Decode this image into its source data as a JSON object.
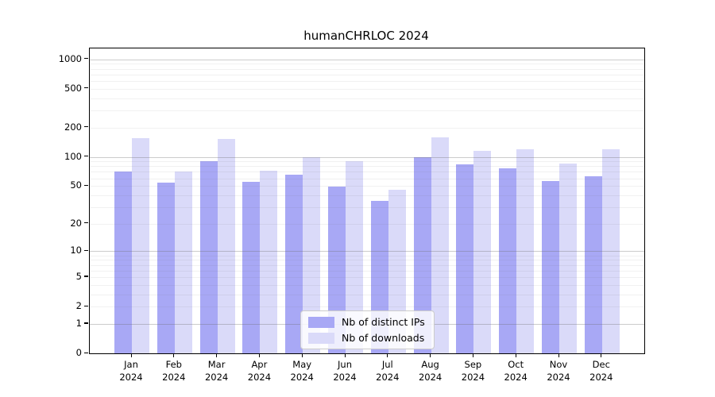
{
  "chart_data": {
    "type": "bar",
    "title": "humanCHRLOC 2024",
    "categories": [
      "Jan",
      "Feb",
      "Mar",
      "Apr",
      "May",
      "Jun",
      "Jul",
      "Aug",
      "Sep",
      "Oct",
      "Nov",
      "Dec"
    ],
    "year_label": "2024",
    "series": [
      {
        "name": "Nb of distinct IPs",
        "color": "#a8a8f5",
        "values": [
          71,
          54,
          90,
          55,
          65,
          49,
          35,
          100,
          84,
          76,
          56,
          63
        ]
      },
      {
        "name": "Nb of downloads",
        "color": "#dadaf9",
        "values": [
          157,
          71,
          152,
          72,
          100,
          90,
          46,
          160,
          115,
          119,
          85,
          120
        ]
      }
    ],
    "y_axis": {
      "scale": "log1p",
      "ticks": [
        0,
        1,
        2,
        5,
        10,
        20,
        50,
        100,
        200,
        500,
        1000
      ],
      "ylim": [
        0,
        1290
      ]
    },
    "grid": {
      "on": true,
      "major_ticks": [
        1,
        10,
        100,
        1000
      ],
      "major_color": "rgba(110,110,110,0.35)",
      "minor_color": "rgba(120,120,120,0.10)"
    },
    "legend": {
      "position": "lower-center"
    }
  }
}
